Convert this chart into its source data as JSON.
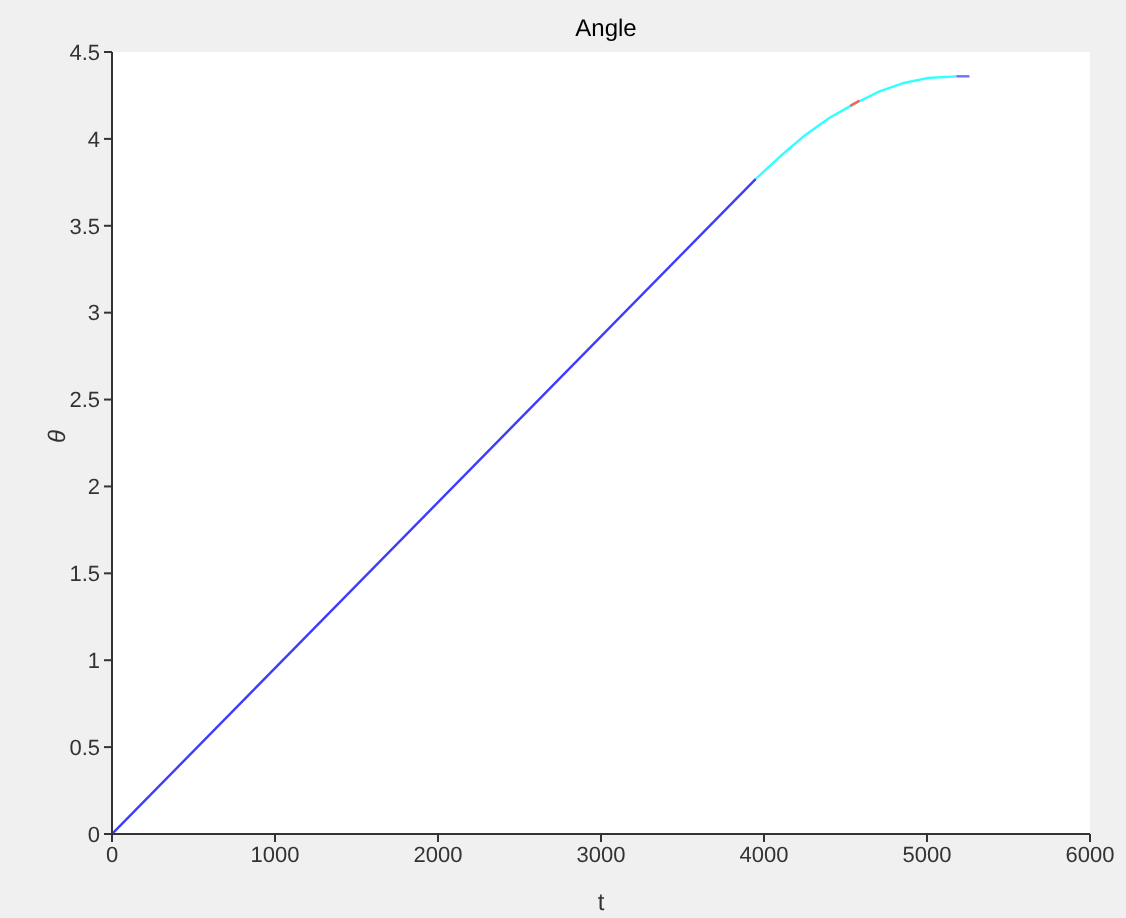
{
  "chart_data": {
    "type": "line",
    "title": "Angle",
    "xlabel": "t",
    "ylabel": "θ",
    "xlim": [
      0,
      6000
    ],
    "xticks": [
      0,
      1000,
      2000,
      3000,
      4000,
      5000,
      6000
    ],
    "ylim": [
      0,
      4.5
    ],
    "yticks": [
      0,
      0.5,
      1,
      1.5,
      2,
      2.5,
      3,
      3.5,
      4,
      4.5
    ],
    "marker": "none",
    "line_style": "solid",
    "series": [
      {
        "color": "#3c3cff",
        "x": [
          0,
          3950
        ],
        "values": [
          0,
          3.77
        ]
      },
      {
        "color": "#33ffff",
        "x": [
          3950,
          4100,
          4250,
          4400,
          4550,
          4700,
          4850,
          5000,
          5180
        ],
        "values": [
          3.77,
          3.9,
          4.02,
          4.12,
          4.2,
          4.27,
          4.32,
          4.35,
          4.36
        ]
      },
      {
        "color": "#ff6060",
        "x": [
          4530,
          4585
        ],
        "values": [
          4.19,
          4.22
        ]
      },
      {
        "color": "#6e6eff",
        "x": [
          5180,
          5260
        ],
        "values": [
          4.36,
          4.36
        ]
      }
    ]
  }
}
